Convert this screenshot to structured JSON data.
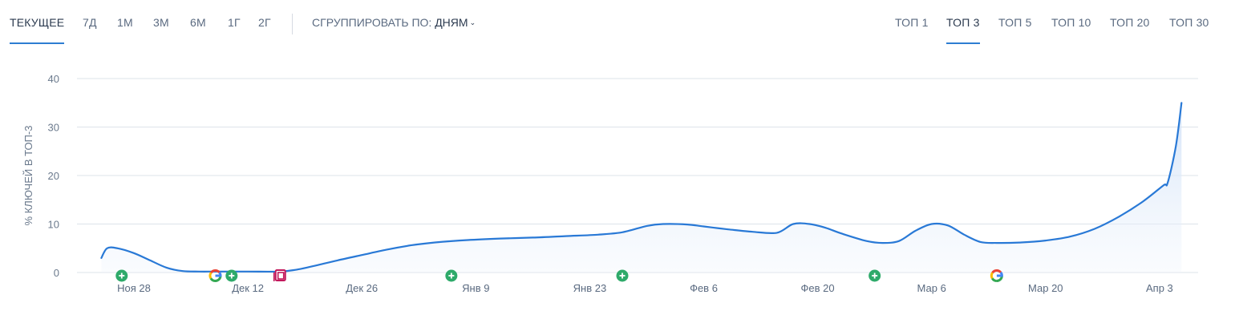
{
  "period_tabs": [
    {
      "label": "ТЕКУЩЕЕ",
      "active": true
    },
    {
      "label": "7Д",
      "active": false
    },
    {
      "label": "1М",
      "active": false
    },
    {
      "label": "3М",
      "active": false
    },
    {
      "label": "6М",
      "active": false
    },
    {
      "label": "1Г",
      "active": false
    },
    {
      "label": "2Г",
      "active": false
    }
  ],
  "group_by": {
    "label": "СГРУППИРОВАТЬ ПО:",
    "value": "ДНЯМ"
  },
  "top_tabs": [
    {
      "label": "ТОП 1",
      "active": false
    },
    {
      "label": "ТОП 3",
      "active": true
    },
    {
      "label": "ТОП 5",
      "active": false
    },
    {
      "label": "ТОП 10",
      "active": false
    },
    {
      "label": "ТОП 20",
      "active": false
    },
    {
      "label": "ТОП 30",
      "active": false
    }
  ],
  "colors": {
    "line": "#2979d6",
    "area": "#e4eefb",
    "grid": "#dde3ea",
    "accent": "#2d7dd2",
    "event_green": "#2eaa6a",
    "event_pink": "#c2185b"
  },
  "chart_data": {
    "type": "area",
    "ylabel": "% КЛЮЧЕЙ В ТОП-3",
    "ylim": [
      0,
      40
    ],
    "yticks": [
      0,
      10,
      20,
      30,
      40
    ],
    "grid": true,
    "xtick_labels": [
      "Ноя 28",
      "Дек 12",
      "Дек 26",
      "Янв 9",
      "Янв 23",
      "Фев 6",
      "Фев 20",
      "Мар 6",
      "Мар 20",
      "Апр 3"
    ],
    "x_day_offsets": [
      0,
      14,
      28,
      42,
      56,
      70,
      84,
      98,
      112,
      126
    ],
    "series": [
      {
        "points": [
          [
            -4,
            3
          ],
          [
            -3.3,
            5
          ],
          [
            -2,
            5
          ],
          [
            0,
            4
          ],
          [
            2,
            2.5
          ],
          [
            4,
            1
          ],
          [
            6,
            0.3
          ],
          [
            8,
            0.2
          ],
          [
            10,
            0.2
          ],
          [
            14,
            0.2
          ],
          [
            18,
            0.2
          ],
          [
            20,
            0.6
          ],
          [
            22,
            1.3
          ],
          [
            25,
            2.5
          ],
          [
            28,
            3.6
          ],
          [
            31,
            4.7
          ],
          [
            34,
            5.6
          ],
          [
            37,
            6.2
          ],
          [
            41,
            6.7
          ],
          [
            45,
            7.0
          ],
          [
            49,
            7.2
          ],
          [
            53,
            7.5
          ],
          [
            57,
            7.8
          ],
          [
            60,
            8.3
          ],
          [
            63,
            9.6
          ],
          [
            65,
            10
          ],
          [
            68,
            9.9
          ],
          [
            70,
            9.5
          ],
          [
            73,
            8.9
          ],
          [
            76,
            8.4
          ],
          [
            79,
            8.2
          ],
          [
            81,
            10
          ],
          [
            83,
            10
          ],
          [
            85,
            9.2
          ],
          [
            87,
            8.0
          ],
          [
            90,
            6.5
          ],
          [
            92,
            6.1
          ],
          [
            94,
            6.5
          ],
          [
            96,
            8.6
          ],
          [
            98,
            10
          ],
          [
            100,
            9.7
          ],
          [
            102,
            7.8
          ],
          [
            104,
            6.3
          ],
          [
            106,
            6.1
          ],
          [
            109,
            6.2
          ],
          [
            112,
            6.6
          ],
          [
            115,
            7.4
          ],
          [
            118,
            9.0
          ],
          [
            121,
            11.5
          ],
          [
            124,
            14.7
          ],
          [
            126.5,
            18
          ],
          [
            127,
            18.5
          ],
          [
            128,
            26
          ],
          [
            128.7,
            35
          ]
        ]
      }
    ],
    "events": [
      {
        "day": -1.5,
        "icon": "plus-circle-icon"
      },
      {
        "day": 10,
        "icon": "google-icon"
      },
      {
        "day": 12,
        "icon": "plus-circle-icon"
      },
      {
        "day": 18,
        "icon": "document-icon"
      },
      {
        "day": 39,
        "icon": "plus-circle-icon"
      },
      {
        "day": 60,
        "icon": "plus-circle-icon"
      },
      {
        "day": 91,
        "icon": "plus-circle-icon"
      },
      {
        "day": 106,
        "icon": "google-icon"
      }
    ]
  }
}
